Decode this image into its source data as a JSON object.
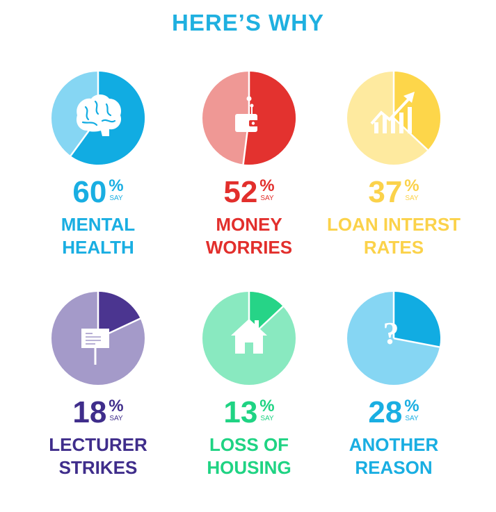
{
  "title": "HERE’S WHY",
  "chart_data": {
    "type": "pie",
    "title": "HERE’S WHY",
    "items": [
      {
        "value": 60,
        "percent_symbol": "%",
        "say": "SAY",
        "label_line1": "MENTAL",
        "label_line2": "HEALTH",
        "icon": "brain-icon",
        "main_color": "#11ace2",
        "light_color": "#86d6f3",
        "text_color": "#19aee2"
      },
      {
        "value": 52,
        "percent_symbol": "%",
        "say": "SAY",
        "label_line1": "MONEY",
        "label_line2": "WORRIES",
        "icon": "wallet-icon",
        "main_color": "#e3322f",
        "light_color": "#ef9895",
        "text_color": "#e22f2c"
      },
      {
        "value": 37,
        "percent_symbol": "%",
        "say": "SAY",
        "label_line1": "LOAN INTERST",
        "label_line2": "RATES",
        "icon": "rising-chart-icon",
        "main_color": "#fdd64a",
        "light_color": "#feea9f",
        "text_color": "#fbd24a"
      },
      {
        "value": 18,
        "percent_symbol": "%",
        "say": "SAY",
        "label_line1": "LECTURER",
        "label_line2": "STRIKES",
        "icon": "picket-sign-icon",
        "main_color": "#4b3590",
        "light_color": "#a49ac9",
        "text_color": "#3f2d8b"
      },
      {
        "value": 13,
        "percent_symbol": "%",
        "say": "SAY",
        "label_line1": "LOSS OF",
        "label_line2": "HOUSING",
        "icon": "house-icon",
        "main_color": "#26d487",
        "light_color": "#89e9c0",
        "text_color": "#1fd383"
      },
      {
        "value": 28,
        "percent_symbol": "%",
        "say": "SAY",
        "label_line1": "ANOTHER",
        "label_line2": "REASON",
        "icon": "question-mark-icon",
        "main_color": "#11ace2",
        "light_color": "#86d6f3",
        "text_color": "#19aee2"
      }
    ]
  }
}
